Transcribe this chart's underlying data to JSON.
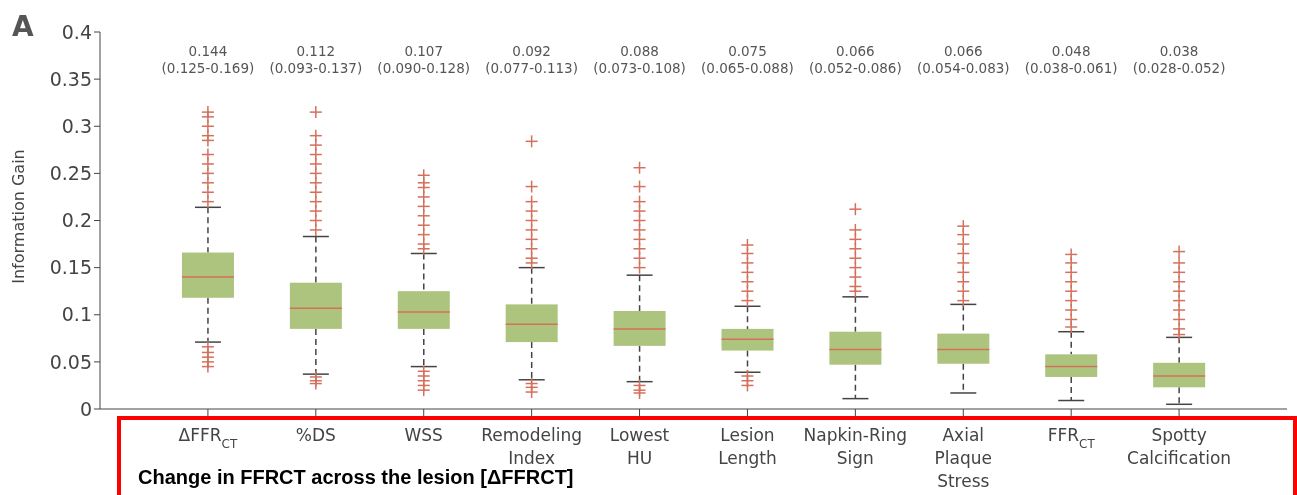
{
  "chart_data": {
    "type": "box",
    "ylabel": "Information Gain",
    "categories": [
      "ΔFFR$_{CT}$",
      "%DS",
      "WSS",
      "Remodeling Index",
      "Lowest HU",
      "Lesion Length",
      "Napkin-Ring Sign",
      "Axial Plaque Stress",
      "FFR$_{CT}$",
      "Spotty Calcification"
    ],
    "series": [
      {
        "color": "#adc47f",
        "boxes": [
          {
            "low": 0.071,
            "q1": 0.118,
            "median": 0.14,
            "q3": 0.166,
            "high": 0.214,
            "outliers": [
              0.315,
              0.31,
              0.3,
              0.29,
              0.285,
              0.27,
              0.26,
              0.25,
              0.24,
              0.23,
              0.22,
              0.066,
              0.06,
              0.055,
              0.05,
              0.045
            ]
          },
          {
            "low": 0.037,
            "q1": 0.085,
            "median": 0.107,
            "q3": 0.134,
            "high": 0.183,
            "outliers": [
              0.315,
              0.29,
              0.28,
              0.27,
              0.26,
              0.25,
              0.24,
              0.23,
              0.22,
              0.21,
              0.2,
              0.19,
              0.034,
              0.03,
              0.027
            ]
          },
          {
            "low": 0.045,
            "q1": 0.085,
            "median": 0.103,
            "q3": 0.125,
            "high": 0.165,
            "outliers": [
              0.248,
              0.24,
              0.235,
              0.225,
              0.215,
              0.205,
              0.195,
              0.185,
              0.175,
              0.17,
              0.04,
              0.035,
              0.03,
              0.025,
              0.02
            ]
          },
          {
            "low": 0.031,
            "q1": 0.071,
            "median": 0.09,
            "q3": 0.111,
            "high": 0.15,
            "outliers": [
              0.284,
              0.236,
              0.22,
              0.21,
              0.2,
              0.19,
              0.18,
              0.17,
              0.16,
              0.155,
              0.027,
              0.023,
              0.018
            ]
          },
          {
            "low": 0.029,
            "q1": 0.067,
            "median": 0.085,
            "q3": 0.104,
            "high": 0.142,
            "outliers": [
              0.256,
              0.236,
              0.22,
              0.21,
              0.2,
              0.19,
              0.18,
              0.17,
              0.16,
              0.15,
              0.025,
              0.02,
              0.017
            ]
          },
          {
            "low": 0.039,
            "q1": 0.062,
            "median": 0.074,
            "q3": 0.085,
            "high": 0.109,
            "outliers": [
              0.174,
              0.165,
              0.155,
              0.145,
              0.135,
              0.125,
              0.115,
              0.035,
              0.03,
              0.025
            ]
          },
          {
            "low": 0.011,
            "q1": 0.047,
            "median": 0.063,
            "q3": 0.082,
            "high": 0.119,
            "outliers": [
              0.212,
              0.19,
              0.18,
              0.17,
              0.16,
              0.15,
              0.14,
              0.13,
              0.125
            ]
          },
          {
            "low": 0.017,
            "q1": 0.048,
            "median": 0.063,
            "q3": 0.08,
            "high": 0.111,
            "outliers": [
              0.194,
              0.185,
              0.175,
              0.165,
              0.155,
              0.145,
              0.135,
              0.125,
              0.115
            ]
          },
          {
            "low": 0.009,
            "q1": 0.034,
            "median": 0.045,
            "q3": 0.058,
            "high": 0.082,
            "outliers": [
              0.164,
              0.155,
              0.145,
              0.135,
              0.125,
              0.115,
              0.105,
              0.095,
              0.087
            ]
          },
          {
            "low": 0.005,
            "q1": 0.023,
            "median": 0.035,
            "q3": 0.049,
            "high": 0.076,
            "outliers": [
              0.167,
              0.155,
              0.145,
              0.135,
              0.125,
              0.115,
              0.105,
              0.095,
              0.085,
              0.079
            ]
          }
        ]
      }
    ],
    "ylim": [
      0,
      0.4
    ],
    "yticks": [
      0,
      0.05,
      0.1,
      0.15,
      0.2,
      0.25,
      0.3,
      0.35,
      0.4
    ],
    "grid": false,
    "legend": false,
    "marker": "cross",
    "annotations": [
      "A",
      "0.144 (0.125-0.169)",
      "0.112 (0.093-0.137)",
      "0.107 (0.090-0.128)",
      "0.092 (0.077-0.113)",
      "0.088 (0.073-0.108)",
      "0.075 (0.065-0.088)",
      "0.066 (0.052-0.086)",
      "0.066 (0.054-0.083)",
      "0.048 (0.038-0.061)",
      "0.038 (0.028-0.052)",
      "Change in FFRCT across the lesion [ΔFFRCT]"
    ]
  }
}
